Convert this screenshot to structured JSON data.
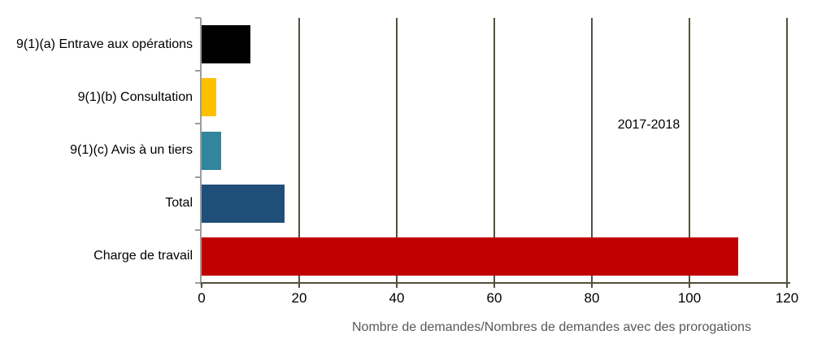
{
  "chart_data": {
    "type": "bar",
    "orientation": "horizontal",
    "title": "",
    "categories": [
      "9(1)(a) Entrave aux opérations",
      "9(1)(b) Consultation",
      "9(1)(c) Avis à un tiers",
      "Total",
      "Charge de travail"
    ],
    "values": [
      10,
      3,
      4,
      17,
      110
    ],
    "bar_colors": [
      "#000000",
      "#FFC000",
      "#31859C",
      "#1F4E79",
      "#C00000"
    ],
    "xlabel": "Nombre de demandes/Nombres de demandes avec des prorogations",
    "ylabel": "",
    "xlim": [
      0,
      120
    ],
    "xticks": [
      "0",
      "20",
      "40",
      "60",
      "80",
      "100",
      "120"
    ],
    "xtick_values": [
      0,
      20,
      40,
      60,
      80,
      100,
      120
    ],
    "grid": true,
    "legend_position": "none",
    "annotation": {
      "text": "2017-2018"
    },
    "colors": {
      "background": "#ffffff",
      "gridline": "#544f3d",
      "x_axis": "#544f3d",
      "y_axis": "#9c9c9c",
      "tick_text": "#000000",
      "xlabel_text": "#595959"
    }
  }
}
